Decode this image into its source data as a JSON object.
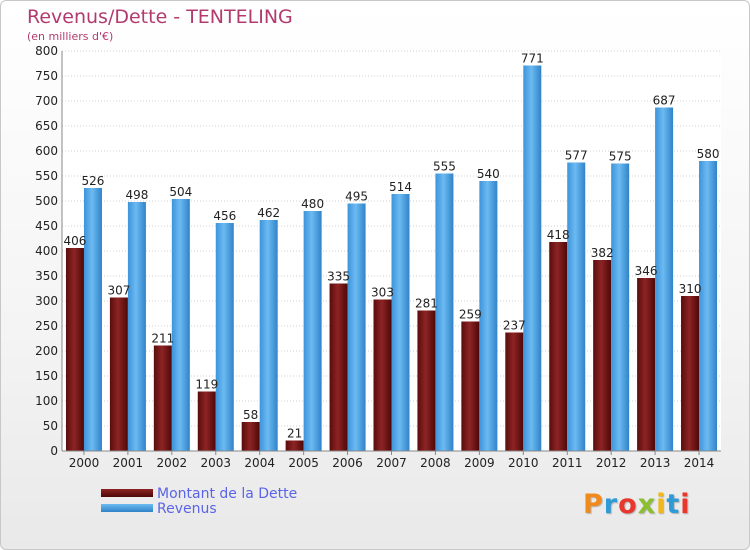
{
  "chart_data": {
    "type": "bar",
    "title": "Revenus/Dette - TENTELING",
    "subtitle": "(en milliers d'€)",
    "categories": [
      "2000",
      "2001",
      "2002",
      "2003",
      "2004",
      "2005",
      "2006",
      "2007",
      "2008",
      "2009",
      "2010",
      "2011",
      "2012",
      "2013",
      "2014"
    ],
    "series": [
      {
        "name": "Montant de la Dette",
        "color": "#7a1818",
        "values": [
          406,
          307,
          211,
          119,
          58,
          21,
          335,
          303,
          281,
          259,
          237,
          418,
          382,
          346,
          310
        ]
      },
      {
        "name": "Revenus",
        "color": "#4ba3e6",
        "values": [
          526,
          498,
          504,
          456,
          462,
          480,
          495,
          514,
          555,
          540,
          771,
          577,
          575,
          687,
          580
        ]
      }
    ],
    "ylim": [
      0,
      800
    ],
    "yticks": [
      0,
      50,
      100,
      150,
      200,
      250,
      300,
      350,
      400,
      450,
      500,
      550,
      600,
      650,
      700,
      750,
      800
    ],
    "grid": true,
    "legend_position": "bottom-left"
  },
  "logo_text": "Proxiti",
  "logo_colors": [
    "#f08a1c",
    "#2e9bd6",
    "#e8372c",
    "#8bbf2e",
    "#f0b81c",
    "#2e9bd6",
    "#e8372c"
  ]
}
